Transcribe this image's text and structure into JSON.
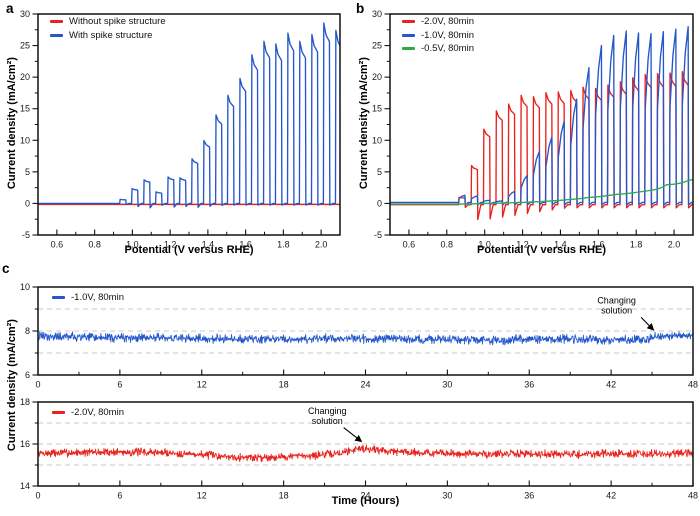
{
  "figure": {
    "panel_labels": [
      "a",
      "b",
      "c"
    ]
  },
  "colors": {
    "red": "#e8221c",
    "blue": "#2457cc",
    "green": "#2fa94a",
    "grid": "#c8c8c8",
    "axis": "#111111"
  },
  "chart_data": [
    {
      "panel": "a",
      "type": "line",
      "title": "",
      "xlabel": "Potential (V versus RHE)",
      "ylabel": "Current density (mA/cm²)",
      "xlim": [
        0.5,
        2.1
      ],
      "ylim": [
        -5,
        30
      ],
      "xticks": [
        0.6,
        0.8,
        1.0,
        1.2,
        1.4,
        1.6,
        1.8,
        2.0
      ],
      "xtick_labels": [
        "0.6",
        "0.8",
        "1.0",
        "1.2",
        "1.4",
        "1.6",
        "1.8",
        "2.0"
      ],
      "yticks": [
        -5,
        0,
        5,
        10,
        15,
        20,
        25,
        30
      ],
      "ytick_labels": [
        "-5",
        "0",
        "5",
        "10",
        "15",
        "20",
        "25",
        "30"
      ],
      "x_minor": 0.1,
      "y_minor": 2.5,
      "grid_y": [],
      "legend_position": "top-left",
      "annotations": [],
      "series": [
        {
          "name": "Without spike structure",
          "color": "#e8221c",
          "kind": "flat",
          "level": -0.15
        },
        {
          "name": "With spike structure",
          "color": "#2457cc",
          "kind": "pulses",
          "shape": "decay",
          "baseline": 0.0,
          "pulse_width": 0.034,
          "undershoot": 1.5,
          "pulses": [
            [
              0.95,
              0.6
            ],
            [
              1.013,
              2.2
            ],
            [
              1.077,
              3.5
            ],
            [
              1.14,
              1.7
            ],
            [
              1.204,
              3.9
            ],
            [
              1.267,
              3.8
            ],
            [
              1.331,
              6.6
            ],
            [
              1.394,
              9.3
            ],
            [
              1.458,
              13.1
            ],
            [
              1.521,
              16.0
            ],
            [
              1.585,
              18.5
            ],
            [
              1.648,
              22.0
            ],
            [
              1.712,
              24.0
            ],
            [
              1.775,
              23.6
            ],
            [
              1.839,
              25.2
            ],
            [
              1.902,
              24.0
            ],
            [
              1.966,
              25.0
            ],
            [
              2.029,
              26.7
            ],
            [
              2.093,
              25.6
            ]
          ]
        }
      ]
    },
    {
      "panel": "b",
      "type": "line",
      "title": "",
      "xlabel": "Potential (V versus RHE)",
      "ylabel": "Current density (mA/cm²)",
      "xlim": [
        0.5,
        2.1
      ],
      "ylim": [
        -5,
        30
      ],
      "xticks": [
        0.6,
        0.8,
        1.0,
        1.2,
        1.4,
        1.6,
        1.8,
        2.0
      ],
      "xtick_labels": [
        "0.6",
        "0.8",
        "1.0",
        "1.2",
        "1.4",
        "1.6",
        "1.8",
        "2.0"
      ],
      "yticks": [
        -5,
        0,
        5,
        10,
        15,
        20,
        25,
        30
      ],
      "ytick_labels": [
        "-5",
        "0",
        "5",
        "10",
        "15",
        "20",
        "25",
        "30"
      ],
      "x_minor": 0.1,
      "y_minor": 2.5,
      "grid_y": [],
      "legend_position": "top-left",
      "annotations": [],
      "series": [
        {
          "name": "-2.0V, 80min",
          "color": "#e8221c",
          "kind": "pulses",
          "shape": "decay",
          "baseline": -0.2,
          "pulse_width": 0.035,
          "undershoot": 2.8,
          "pulses": [
            [
              0.88,
              0.9
            ],
            [
              0.946,
              5.6
            ],
            [
              1.011,
              11.0
            ],
            [
              1.077,
              13.7
            ],
            [
              1.142,
              14.7
            ],
            [
              1.208,
              16.0
            ],
            [
              1.273,
              15.8
            ],
            [
              1.339,
              16.4
            ],
            [
              1.404,
              16.5
            ],
            [
              1.47,
              16.7
            ],
            [
              1.535,
              17.2
            ],
            [
              1.601,
              17.0
            ],
            [
              1.666,
              17.5
            ],
            [
              1.732,
              18.0
            ],
            [
              1.797,
              18.6
            ],
            [
              1.863,
              19.1
            ],
            [
              1.928,
              19.2
            ],
            [
              1.994,
              19.3
            ],
            [
              2.059,
              19.5
            ]
          ]
        },
        {
          "name": "-1.0V, 80min",
          "color": "#2457cc",
          "kind": "pulses",
          "shape": "rise",
          "baseline": 0.15,
          "pulse_width": 0.035,
          "undershoot": 0.5,
          "pulses": [
            [
              0.88,
              1.3
            ],
            [
              0.946,
              1.2
            ],
            [
              1.011,
              0.5
            ],
            [
              1.077,
              0.4
            ],
            [
              1.142,
              1.9
            ],
            [
              1.208,
              4.4
            ],
            [
              1.273,
              8.2
            ],
            [
              1.339,
              10.5
            ],
            [
              1.404,
              13.0
            ],
            [
              1.47,
              16.5
            ],
            [
              1.535,
              21.5
            ],
            [
              1.601,
              25.0
            ],
            [
              1.666,
              26.6
            ],
            [
              1.732,
              27.3
            ],
            [
              1.797,
              27.0
            ],
            [
              1.863,
              26.9
            ],
            [
              1.928,
              27.2
            ],
            [
              1.994,
              27.6
            ],
            [
              2.059,
              28.0
            ]
          ]
        },
        {
          "name": "-0.5V, 80min",
          "color": "#2fa94a",
          "kind": "line",
          "points": [
            [
              0.5,
              -0.1
            ],
            [
              0.9,
              -0.1
            ],
            [
              1.0,
              0.0
            ],
            [
              1.1,
              0.05
            ],
            [
              1.2,
              0.15
            ],
            [
              1.3,
              0.3
            ],
            [
              1.4,
              0.5
            ],
            [
              1.5,
              0.75
            ],
            [
              1.55,
              0.95
            ],
            [
              1.6,
              1.05
            ],
            [
              1.65,
              1.25
            ],
            [
              1.7,
              1.45
            ],
            [
              1.75,
              1.55
            ],
            [
              1.8,
              1.75
            ],
            [
              1.85,
              1.95
            ],
            [
              1.9,
              2.2
            ],
            [
              1.93,
              2.45
            ],
            [
              1.96,
              2.95
            ],
            [
              2.0,
              3.05
            ],
            [
              2.04,
              3.25
            ],
            [
              2.08,
              3.65
            ],
            [
              2.1,
              3.8
            ]
          ]
        }
      ]
    },
    {
      "panel": "c-top",
      "type": "line",
      "title": "",
      "xlabel": "",
      "ylabel": "Current density (mA/cm²)",
      "xlim": [
        0,
        48
      ],
      "ylim": [
        6,
        10
      ],
      "xticks": [
        0,
        6,
        12,
        18,
        24,
        30,
        36,
        42,
        48
      ],
      "xtick_labels": [
        "0",
        "6",
        "12",
        "18",
        "24",
        "30",
        "36",
        "42",
        "48"
      ],
      "yticks": [
        6,
        8,
        10
      ],
      "ytick_labels": [
        "6",
        "8",
        "10"
      ],
      "x_minor": 3,
      "y_minor": 1,
      "grid_y": [
        7,
        8,
        9
      ],
      "legend_position": "top-left",
      "annotations": [
        {
          "text": [
            "Changing",
            "solution"
          ],
          "text_pos": [
            42.4,
            9.25
          ],
          "arrow_from": [
            44.2,
            8.62
          ],
          "arrow_to": [
            45.1,
            8.05
          ]
        }
      ],
      "series": [
        {
          "name": "-1.0V, 80min",
          "color": "#2457cc",
          "kind": "noise",
          "amp": 0.17,
          "seed": 42,
          "n": 1500,
          "trend": [
            [
              0,
              7.75
            ],
            [
              3,
              7.72
            ],
            [
              6,
              7.7
            ],
            [
              9,
              7.68
            ],
            [
              12,
              7.65
            ],
            [
              15,
              7.63
            ],
            [
              18,
              7.62
            ],
            [
              21,
              7.65
            ],
            [
              24,
              7.66
            ],
            [
              27,
              7.63
            ],
            [
              30,
              7.62
            ],
            [
              33,
              7.57
            ],
            [
              36,
              7.62
            ],
            [
              39,
              7.63
            ],
            [
              42,
              7.6
            ],
            [
              44.5,
              7.62
            ],
            [
              45.5,
              7.78
            ],
            [
              48,
              7.82
            ]
          ]
        }
      ]
    },
    {
      "panel": "c-bottom",
      "type": "line",
      "title": "",
      "xlabel": "Time (Hours)",
      "ylabel": "",
      "xlim": [
        0,
        48
      ],
      "ylim": [
        14,
        18
      ],
      "xticks": [
        0,
        6,
        12,
        18,
        24,
        30,
        36,
        42,
        48
      ],
      "xtick_labels": [
        "0",
        "6",
        "12",
        "18",
        "24",
        "30",
        "36",
        "42",
        "48"
      ],
      "yticks": [
        14,
        16,
        18
      ],
      "ytick_labels": [
        "14",
        "16",
        "18"
      ],
      "x_minor": 3,
      "y_minor": 1,
      "grid_y": [
        15,
        16,
        17
      ],
      "legend_position": "top-left",
      "annotations": [
        {
          "text": [
            "Changing",
            "solution"
          ],
          "text_pos": [
            21.2,
            17.42
          ],
          "arrow_from": [
            22.4,
            16.78
          ],
          "arrow_to": [
            23.7,
            16.12
          ]
        }
      ],
      "series": [
        {
          "name": "-2.0V, 80min",
          "color": "#e8221c",
          "kind": "noise",
          "amp": 0.16,
          "seed": 7,
          "n": 1500,
          "trend": [
            [
              0,
              15.55
            ],
            [
              3,
              15.6
            ],
            [
              6,
              15.62
            ],
            [
              9,
              15.6
            ],
            [
              12,
              15.5
            ],
            [
              14,
              15.4
            ],
            [
              16,
              15.35
            ],
            [
              18,
              15.4
            ],
            [
              20,
              15.45
            ],
            [
              22,
              15.55
            ],
            [
              23.5,
              15.8
            ],
            [
              24.5,
              15.75
            ],
            [
              26,
              15.65
            ],
            [
              28,
              15.6
            ],
            [
              30,
              15.55
            ],
            [
              33,
              15.52
            ],
            [
              36,
              15.55
            ],
            [
              39,
              15.5
            ],
            [
              42,
              15.55
            ],
            [
              45,
              15.52
            ],
            [
              48,
              15.55
            ]
          ]
        }
      ]
    }
  ]
}
